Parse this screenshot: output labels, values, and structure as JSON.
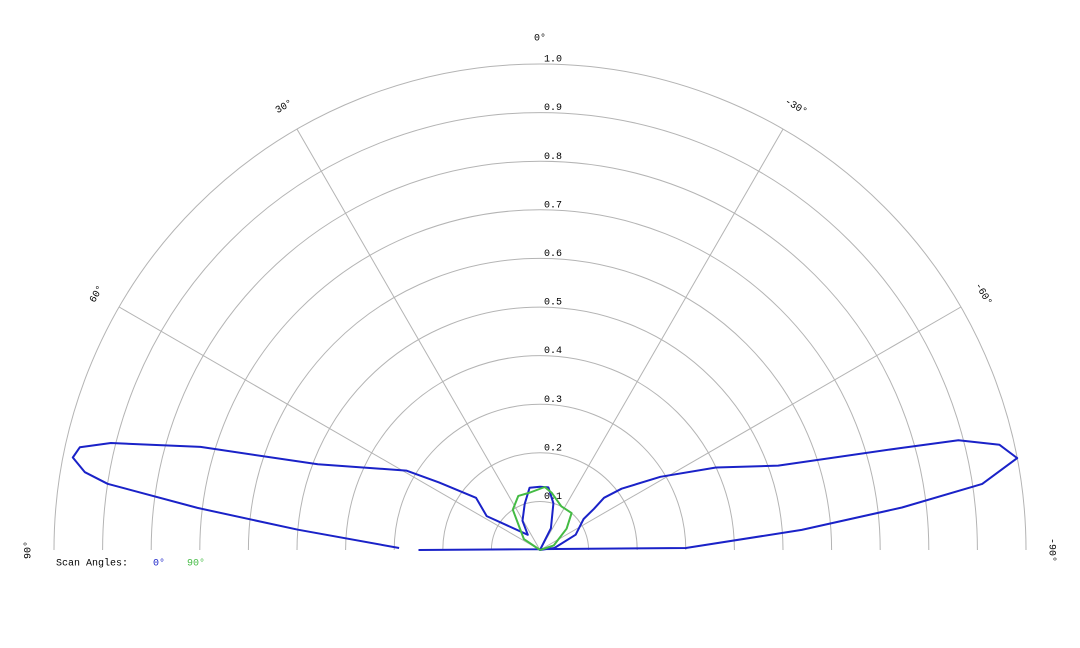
{
  "chart_data": {
    "type": "polar",
    "rlim": [
      0,
      1
    ],
    "rticks": [
      0.1,
      0.2,
      0.3,
      0.4,
      0.5,
      0.6,
      0.7,
      0.8,
      0.9,
      {
        "value": 1,
        "label": "1.0"
      }
    ],
    "thetaticks": [
      {
        "value": 0,
        "label": "0°"
      },
      {
        "value": 30,
        "label": "30°"
      },
      {
        "value": 60,
        "label": "60°"
      },
      {
        "value": 90,
        "label": "90°"
      },
      {
        "value": -30,
        "label": "-30°"
      },
      {
        "value": -60,
        "label": "-60°"
      },
      {
        "value": -90,
        "label": "-90°"
      }
    ],
    "legend_title": "Scan Angles:",
    "series": [
      {
        "name": "0°",
        "color": "#1a22c8",
        "x": [
          90,
          -89.2,
          -85.6,
          -83.3,
          -81.5,
          -79.1,
          -77.1,
          -75.3,
          -74.2,
          -70.5,
          -64.9,
          -58.7,
          -53.1,
          -50.8,
          -52.6,
          -54.6,
          -66.8,
          -82,
          -45,
          -26.6,
          -16,
          -7.6,
          0,
          9.5,
          18.4,
          31,
          38.7,
          57.5,
          50.8,
          56.2,
          59.3,
          68.9,
          73.1,
          76,
          77.4,
          78.8,
          80.3,
          81.3,
          83,
          85.2,
          89.2
        ],
        "values": [
          0.25,
          0.3,
          0.54,
          0.75,
          0.92,
          1.0,
          0.97,
          0.89,
          0.77,
          0.52,
          0.4,
          0.29,
          0.21,
          0.17,
          0.14,
          0.11,
          0.08,
          0.03,
          0,
          0.05,
          0.1,
          0.13,
          0.13,
          0.13,
          0.1,
          0.07,
          0.04,
          0.13,
          0.17,
          0.25,
          0.32,
          0.49,
          0.73,
          0.91,
          0.97,
          0.98,
          0.95,
          0.9,
          0.71,
          0.5,
          0.29
        ]
      },
      {
        "name": "90°",
        "color": "#44bb44",
        "x": [
          -90,
          -71.6,
          -51.3,
          -40.6,
          -26,
          -11.7,
          -4.4,
          9.8,
          21.8,
          34,
          56,
          90
        ],
        "values": [
          0,
          0.03,
          0.07,
          0.1,
          0.1,
          0.12,
          0.13,
          0.12,
          0.12,
          0.1,
          0.04,
          0
        ]
      }
    ]
  }
}
